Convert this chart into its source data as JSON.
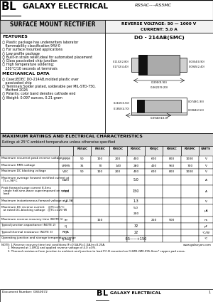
{
  "title_company": "GALAXY ELECTRICAL",
  "title_part": "RS5AC----RS5MC",
  "subtitle": "SURFACE MOUNT RECTIFIER",
  "reverse_voltage": "REVERSE VOLTAGE: 50 — 1000 V",
  "current": "CURRENT: 5.0 A",
  "package": "DO - 214AB(SMC)",
  "col_headers": [
    "RS5AC",
    "RS5BC",
    "RS5DC/RS5GC",
    "RS5JC",
    "RS5KC",
    "RS5MC",
    "UNITS"
  ],
  "col_headers_actual": [
    "RS5AC",
    "RS5BC",
    "RS5DC",
    "RS5GC",
    "RS5JC",
    "RS5KC",
    "RS5MC",
    "UNITS"
  ],
  "row_params": [
    "Maximum recurrent peak reverse voltage",
    "Maximum RMS voltage",
    "Maximum DC blocking voltage",
    "Maximum average forward rectified current at\n  TL=-98°C",
    "Peak forward surge current 8.3ms\n  single half-sine-wave superimposed on rated\n  load",
    "Maximum instantaneous forward voltage at 5.0A",
    "Maximum DC reverse current    @TC=25°C\n  at rated DC-blocking voltage   @TC=125°C",
    "Maximum reverse recovery time (NOTE 1)",
    "Typical junction capacitance (NOTE 2)",
    "Typical thermal resistance (NOTE 3)",
    "Operating junction and storage temperature range"
  ],
  "row_symbols": [
    "VRRM",
    "VRMS",
    "VDC",
    "I(AV)",
    "IFSM",
    "Vf",
    "IR",
    "trr",
    "Cj",
    "RθJA",
    "Tj,Tstg"
  ],
  "row_units": [
    "V",
    "V",
    "V",
    "A",
    "A",
    "V",
    "μA",
    "ns",
    "pF",
    "°C/W",
    "°C"
  ],
  "row_values": [
    [
      "50",
      "100",
      "200",
      "400",
      "600",
      "800",
      "1000"
    ],
    [
      "35",
      "70",
      "140",
      "280",
      "420",
      "560",
      "700"
    ],
    [
      "50",
      "100",
      "200",
      "400",
      "600",
      "800",
      "1000"
    ],
    [
      "",
      "",
      "5.0",
      "",
      "",
      "",
      ""
    ],
    [
      "",
      "",
      "150",
      "",
      "",
      "",
      ""
    ],
    [
      "",
      "",
      "1.3",
      "",
      "",
      "",
      ""
    ],
    [
      "",
      "",
      "5.0",
      "",
      "",
      "",
      ""
    ],
    [
      "",
      "150",
      "",
      "",
      "250",
      "500",
      ""
    ],
    [
      "",
      "",
      "32",
      "",
      "",
      "",
      ""
    ],
    [
      "",
      "",
      "22",
      "",
      "",
      "",
      ""
    ],
    [
      "",
      "",
      "-55——+150",
      "",
      "",
      "",
      ""
    ]
  ],
  "row_ir_second": "200",
  "notes": [
    "NOTE: 1.Reverse recovery time test conditions:IF=0.5A,IR=1.0A,Irr=0.25A.",
    "       2. Measured at 1.0M-Ω and applied reverse voltage of 4.0 ±0%.",
    "       3. Thermal resistance from junction to ambient and junction to lead P.C.B mounted on 0.2Ø0.2Ø0.095-0mm² copper pad areas."
  ],
  "footer_doc": "Document Number: GS50072",
  "website": "www.galaxyon.com",
  "features": [
    "○ Plastic package has underwriters laborator",
    "   flammability classification 94V-0",
    "○ For surface mounted applications",
    "○ Low profile package",
    "○ Built-in strain relief,ideal for automated placement",
    "○ Glass passivated chip junction",
    "○ High temperature soldering:",
    "   250°C/10 seconds at terminals"
  ],
  "mech": [
    "○ Case:JEDEC DO-214AB,molded plastic over",
    "   passivated chip",
    "○ Terminals:Solder plated, solderable per MIL-STD-750,",
    "   Method 2026",
    "○ Polarity: color band denotes cathode end",
    "○ Weight: 0.097 ounces, 0.21 gram"
  ]
}
